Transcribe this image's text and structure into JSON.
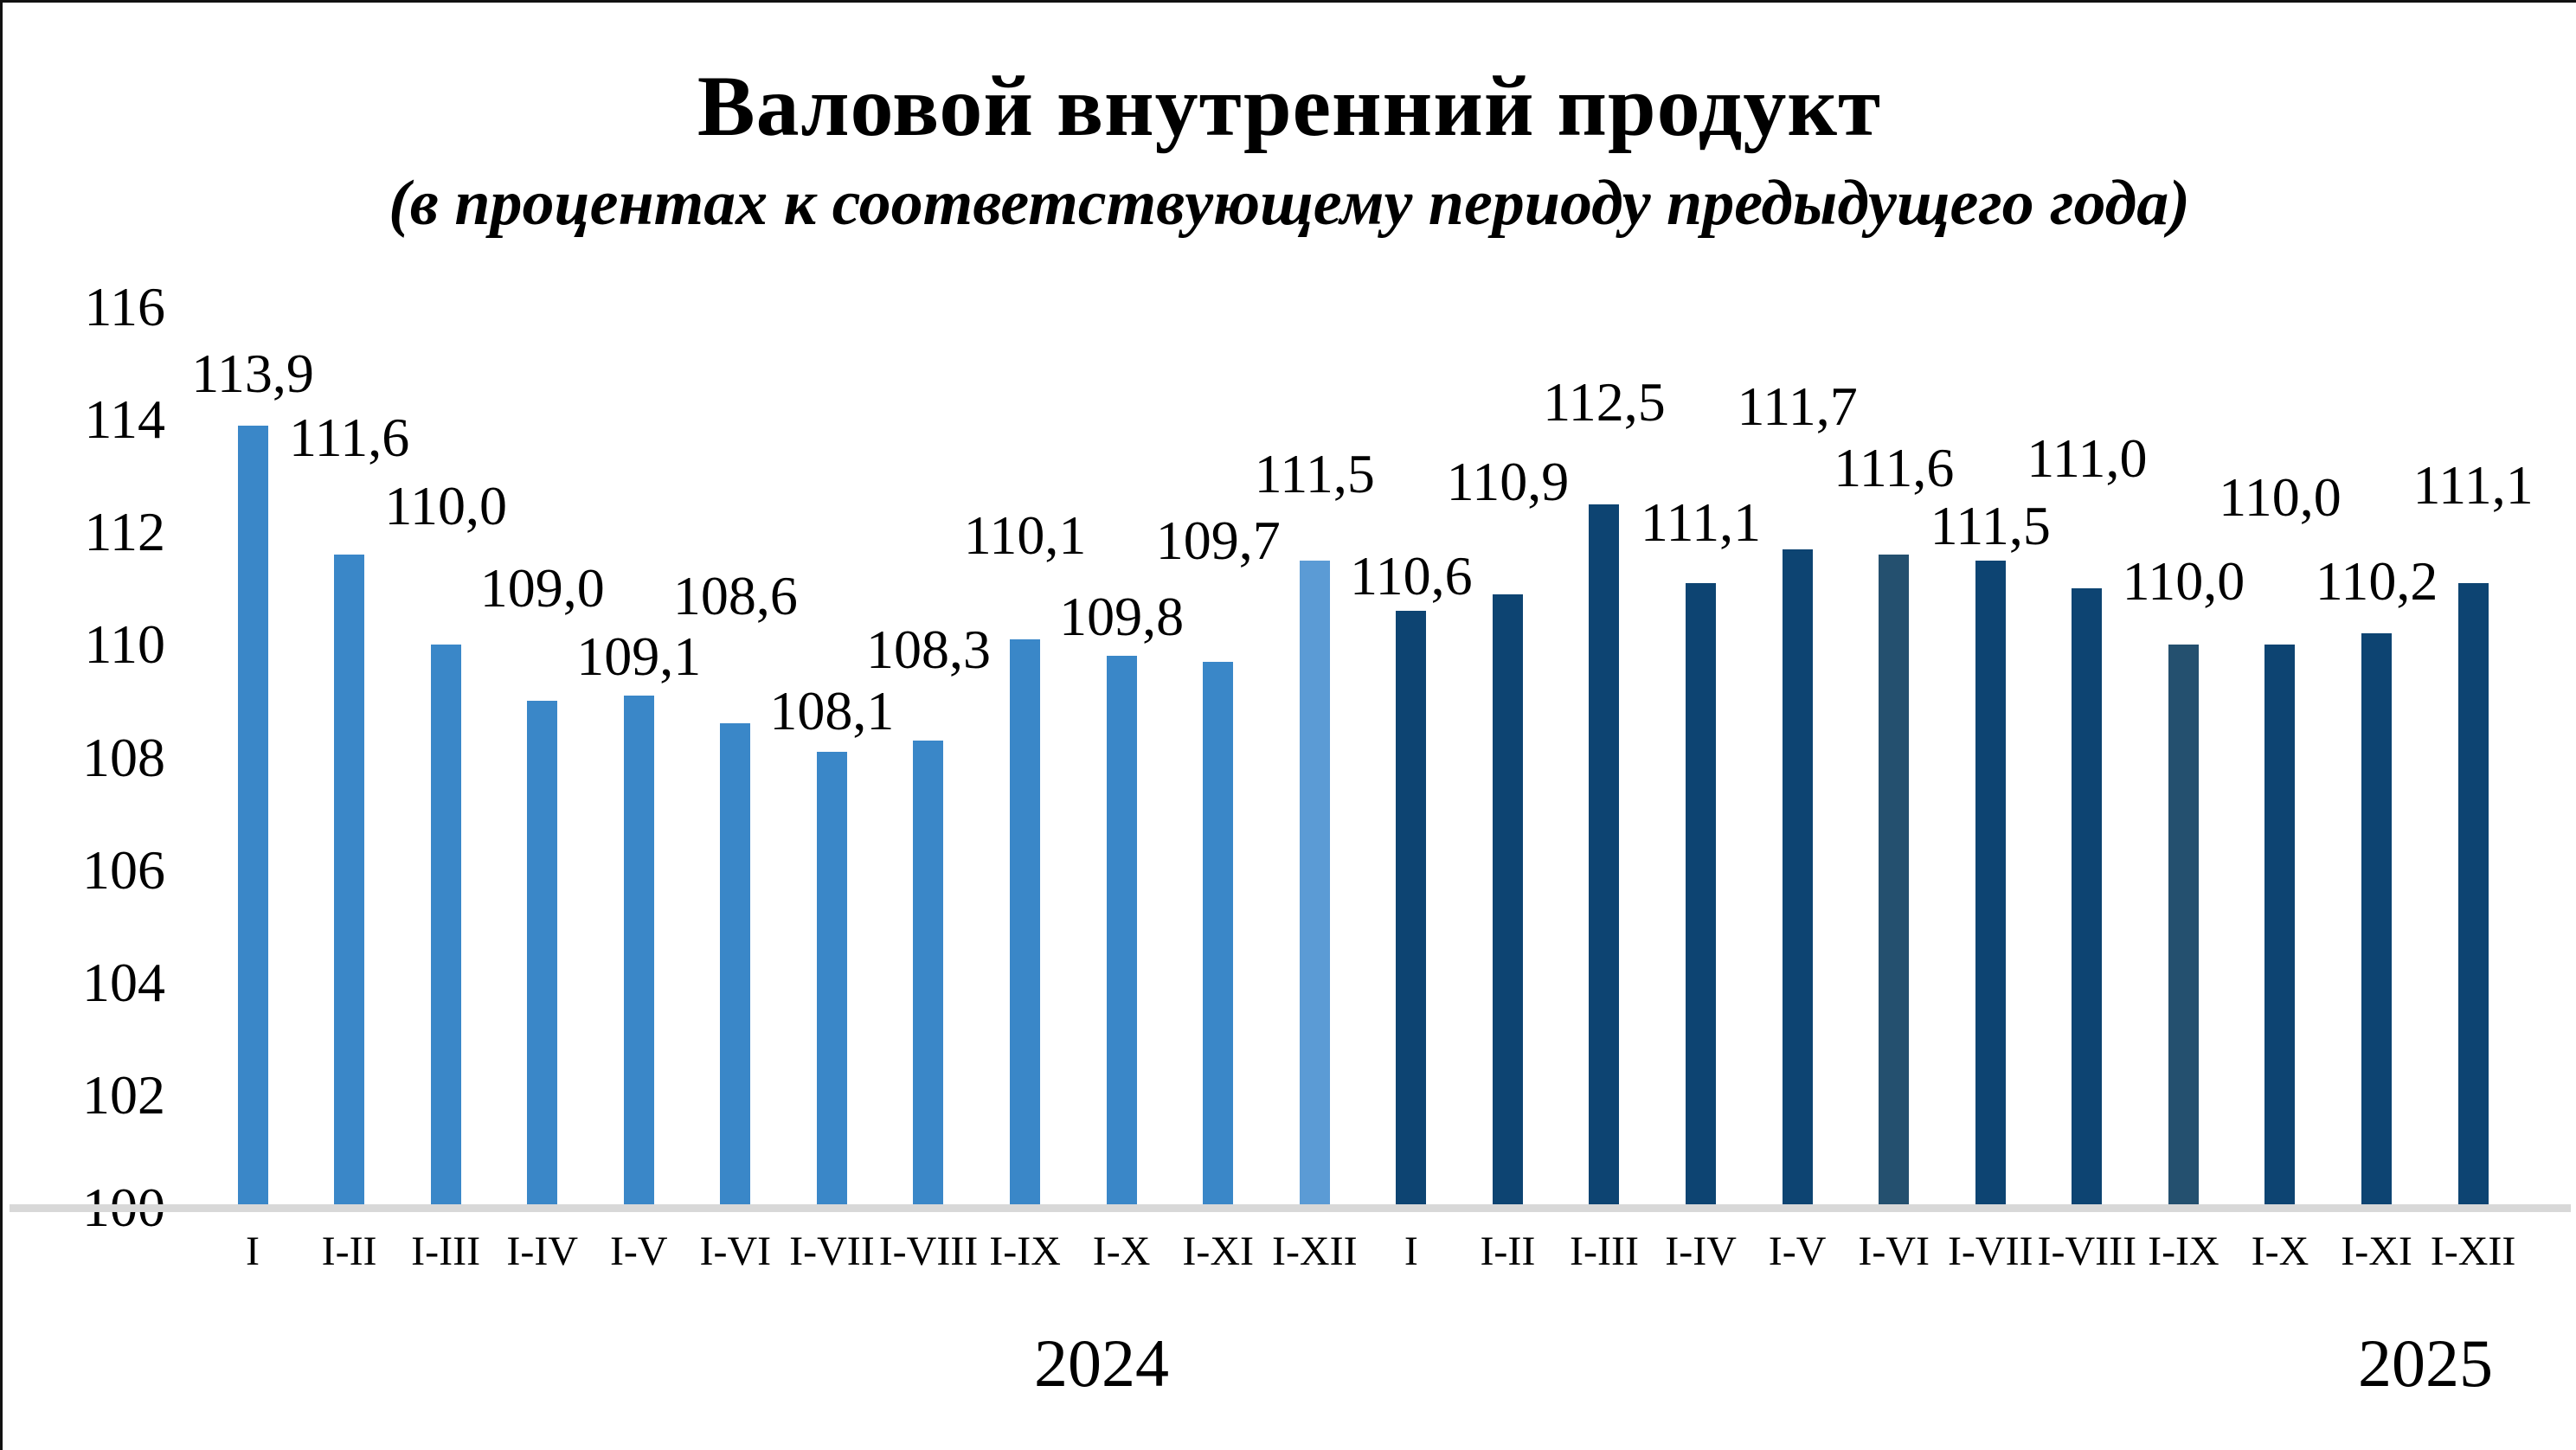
{
  "title": "Валовой внутренний продукт",
  "subtitle": "(в процентах к соответствующему периоду предыдущего года)",
  "colors": {
    "bar_2024": "#3A87C8",
    "bar_2024_last_light": "#5B9BD5",
    "bar_2025": "#0D4472",
    "bar_2025_slate": "#24506F",
    "baseline_gray": "#D8D8D8",
    "text": "#000000"
  },
  "chart_data": {
    "type": "bar",
    "title": "Валовой внутренний продукт",
    "subtitle": "(в процентах к соответствующему периоду предыдущего года)",
    "ylabel": "",
    "xlabel": "",
    "ylim": [
      100,
      116
    ],
    "grid": false,
    "legend": "none",
    "y_ticks": [
      "116",
      "114",
      "112",
      "110",
      "108",
      "106",
      "104",
      "102",
      "100"
    ],
    "y_tick_values": [
      116,
      114,
      112,
      110,
      108,
      106,
      104,
      102,
      100
    ],
    "groups": [
      {
        "year": "2024",
        "points": [
          {
            "category": "I",
            "value": 113.9,
            "label": "113,9",
            "color_key": "bar_2024",
            "label_dy": 60
          },
          {
            "category": "I-II",
            "value": 111.6,
            "label": "111,6",
            "color_key": "bar_2024",
            "label_dy": 135
          },
          {
            "category": "I-III",
            "value": 110.0,
            "label": "110,0",
            "color_key": "bar_2024",
            "label_dy": 160
          },
          {
            "category": "I-IV",
            "value": 109.0,
            "label": "109,0",
            "color_key": "bar_2024",
            "label_dy": 130
          },
          {
            "category": "I-V",
            "value": 109.1,
            "label": "109,1",
            "color_key": "bar_2024",
            "label_dy": 45
          },
          {
            "category": "I-VI",
            "value": 108.6,
            "label": "108,6",
            "color_key": "bar_2024",
            "label_dy": 147
          },
          {
            "category": "I-VII",
            "value": 108.1,
            "label": "108,1",
            "color_key": "bar_2024",
            "label_dy": 47
          },
          {
            "category": "I-VIII",
            "value": 108.3,
            "label": "108,3",
            "color_key": "bar_2024",
            "label_dy": 105
          },
          {
            "category": "I-IX",
            "value": 110.1,
            "label": "110,1",
            "color_key": "bar_2024",
            "label_dy": 120
          },
          {
            "category": "I-X",
            "value": 109.8,
            "label": "109,8",
            "color_key": "bar_2024",
            "label_dy": 45
          },
          {
            "category": "I-XI",
            "value": 109.7,
            "label": "109,7",
            "color_key": "bar_2024",
            "label_dy": 140
          },
          {
            "category": "I-XII",
            "value": 111.5,
            "label": "111,5",
            "color_key": "bar_2024_last_light",
            "label_dy": 100
          }
        ]
      },
      {
        "year": "2025",
        "points": [
          {
            "category": "I",
            "value": 110.6,
            "label": "110,6",
            "color_key": "bar_2025",
            "label_dy": 40
          },
          {
            "category": "I-II",
            "value": 110.9,
            "label": "110,9",
            "color_key": "bar_2025",
            "label_dy": 130
          },
          {
            "category": "I-III",
            "value": 112.5,
            "label": "112,5",
            "color_key": "bar_2025",
            "label_dy": 118
          },
          {
            "category": "I-IV",
            "value": 111.1,
            "label": "111,1",
            "color_key": "bar_2025",
            "label_dy": 70
          },
          {
            "category": "I-V",
            "value": 111.7,
            "label": "111,7",
            "color_key": "bar_2025",
            "label_dy": 165
          },
          {
            "category": "I-VI",
            "value": 111.6,
            "label": "111,6",
            "color_key": "bar_2025_slate",
            "label_dy": 100
          },
          {
            "category": "I-VII",
            "value": 111.5,
            "label": "111,5",
            "color_key": "bar_2025",
            "label_dy": 40
          },
          {
            "category": "I-VIII",
            "value": 111.0,
            "label": "111,0",
            "color_key": "bar_2025",
            "label_dy": 150
          },
          {
            "category": "I-IX",
            "value": 110.0,
            "label": "110,0",
            "color_key": "bar_2025_slate",
            "label_dy": 73
          },
          {
            "category": "I-X",
            "value": 110.0,
            "label": "110,0",
            "color_key": "bar_2025",
            "label_dy": 170
          },
          {
            "category": "I-XI",
            "value": 110.2,
            "label": "110,2",
            "color_key": "bar_2025",
            "label_dy": 60
          },
          {
            "category": "I-XII",
            "value": 111.1,
            "label": "111,1",
            "color_key": "bar_2025",
            "label_dy": 113
          }
        ]
      }
    ],
    "year_labels": [
      {
        "text": "2024",
        "x_center": 1270,
        "y_center": 1573
      },
      {
        "text": "2025",
        "x_center": 2800,
        "y_center": 1573
      }
    ]
  }
}
